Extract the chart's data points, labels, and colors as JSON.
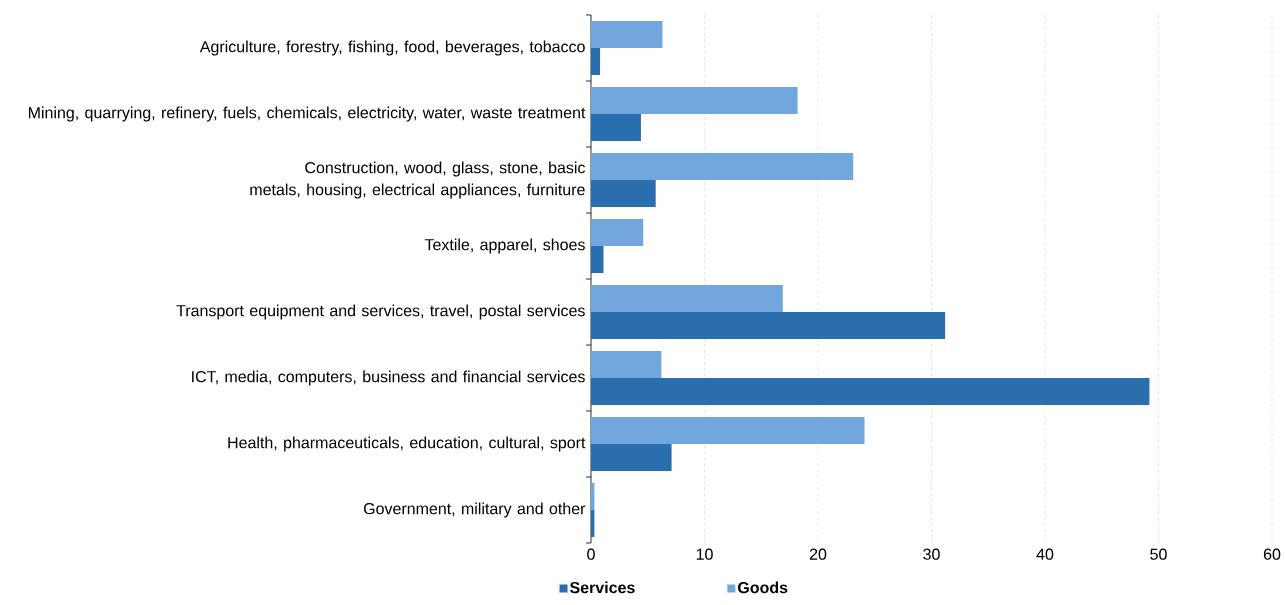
{
  "chart_data": {
    "type": "bar",
    "orientation": "horizontal",
    "categories": [
      "Agriculture, forestry, fishing, food, beverages, tobacco",
      "Mining, quarrying, refinery, fuels, chemicals, electricity, water, waste treatment",
      "Construction, wood, glass, stone, basic metals, housing, electrical appliances, furniture",
      "Textile, apparel, shoes",
      "Transport equipment and services, travel, postal services",
      "ICT, media, computers, business and financial services",
      "Health, pharmaceuticals, education, cultural, sport",
      "Government, military and other"
    ],
    "series": [
      {
        "name": "Services",
        "color": "#2a6ead",
        "values": [
          0.8,
          4.4,
          5.7,
          1.1,
          31.2,
          49.2,
          7.1,
          0.3
        ]
      },
      {
        "name": "Goods",
        "color": "#72a7dd",
        "values": [
          6.3,
          18.2,
          23.1,
          4.6,
          16.9,
          6.2,
          24.1,
          0.3
        ]
      }
    ],
    "xlim": [
      0,
      60
    ],
    "xticks": [
      0,
      10,
      20,
      30,
      40,
      50,
      60
    ],
    "grid": "x",
    "legend": "bottom"
  }
}
